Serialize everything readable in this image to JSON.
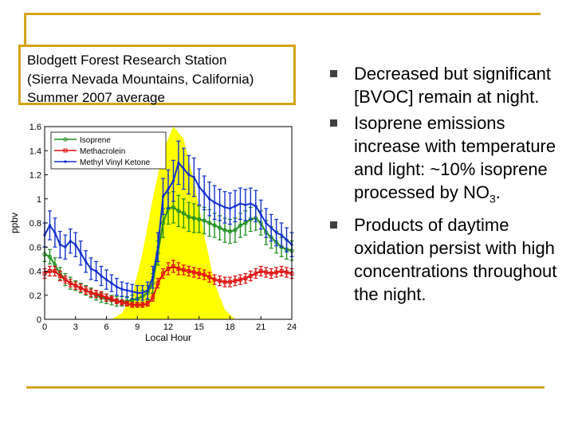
{
  "title_box": {
    "lines": [
      "Blodgett Forest Research Station",
      "(Sierra Nevada Mountains, California)",
      "Summer 2007 average"
    ]
  },
  "bullets": [
    {
      "text": "Decreased but significant [BVOC] remain at night."
    },
    {
      "text": "Isoprene emissions increase with temperature and light: ~10% isoprene processed by NO",
      "sub": "3",
      "suffix": "."
    },
    {
      "text": "Products of daytime oxidation persist with high concentrations throughout the night."
    }
  ],
  "colors": {
    "accent_rule": "#d4a514",
    "light_fill": "#ffff00",
    "isoprene": "#1f8f1f",
    "methacrolein": "#e01010",
    "mvk": "#1030d0"
  },
  "chart_data": {
    "type": "line",
    "xlabel": "Local Hour",
    "ylabel": "ppbv",
    "xlim": [
      0,
      24
    ],
    "ylim": [
      0,
      1.6
    ],
    "xticks": [
      0,
      3,
      6,
      9,
      12,
      15,
      18,
      21,
      24
    ],
    "yticks": [
      0,
      0.2,
      0.4,
      0.6,
      0.8,
      1,
      1.2,
      1.4,
      1.6
    ],
    "ytick_labels": [
      "0",
      "0.2",
      "0.4",
      "0.6",
      "0.8",
      "1",
      "1.2",
      "1.4",
      "1.6"
    ],
    "legend_position": "top-left",
    "background_fill": {
      "x": [
        6.5,
        7.5,
        8.5,
        9.5,
        10.5,
        11.5,
        12.5,
        13.5,
        14.5,
        15.5,
        16.5,
        17.5,
        18.5
      ],
      "y": [
        0,
        0.05,
        0.2,
        0.55,
        1.0,
        1.4,
        1.6,
        1.5,
        1.15,
        0.7,
        0.3,
        0.08,
        0
      ]
    },
    "x": [
      0,
      0.5,
      1,
      1.5,
      2,
      2.5,
      3,
      3.5,
      4,
      4.5,
      5,
      5.5,
      6,
      6.5,
      7,
      7.5,
      8,
      8.5,
      9,
      9.5,
      10,
      10.5,
      11,
      11.5,
      12,
      12.5,
      13,
      13.5,
      14,
      14.5,
      15,
      15.5,
      16,
      16.5,
      17,
      17.5,
      18,
      18.5,
      19,
      19.5,
      20,
      20.5,
      21,
      21.5,
      22,
      22.5,
      23,
      23.5,
      24
    ],
    "series": [
      {
        "name": "Isoprene",
        "color_key": "isoprene",
        "marker": "circle",
        "values": [
          0.54,
          0.52,
          0.45,
          0.38,
          0.33,
          0.3,
          0.28,
          0.26,
          0.24,
          0.22,
          0.2,
          0.18,
          0.17,
          0.16,
          0.15,
          0.15,
          0.15,
          0.16,
          0.17,
          0.19,
          0.22,
          0.3,
          0.55,
          0.8,
          0.92,
          0.93,
          0.9,
          0.88,
          0.85,
          0.84,
          0.83,
          0.82,
          0.8,
          0.78,
          0.76,
          0.74,
          0.73,
          0.74,
          0.78,
          0.8,
          0.83,
          0.84,
          0.8,
          0.72,
          0.68,
          0.64,
          0.6,
          0.58,
          0.57
        ],
        "err": [
          0.06,
          0.06,
          0.06,
          0.05,
          0.05,
          0.05,
          0.04,
          0.04,
          0.04,
          0.04,
          0.04,
          0.04,
          0.04,
          0.04,
          0.04,
          0.04,
          0.04,
          0.04,
          0.05,
          0.05,
          0.06,
          0.08,
          0.1,
          0.12,
          0.13,
          0.13,
          0.13,
          0.12,
          0.12,
          0.12,
          0.11,
          0.11,
          0.11,
          0.1,
          0.1,
          0.1,
          0.1,
          0.1,
          0.1,
          0.1,
          0.1,
          0.1,
          0.1,
          0.1,
          0.09,
          0.09,
          0.08,
          0.08,
          0.08
        ]
      },
      {
        "name": "Methacrolein",
        "color_key": "methacrolein",
        "marker": "square",
        "values": [
          0.38,
          0.4,
          0.4,
          0.36,
          0.33,
          0.3,
          0.28,
          0.26,
          0.24,
          0.22,
          0.21,
          0.2,
          0.18,
          0.17,
          0.15,
          0.14,
          0.13,
          0.12,
          0.12,
          0.12,
          0.13,
          0.18,
          0.3,
          0.38,
          0.42,
          0.44,
          0.42,
          0.41,
          0.4,
          0.39,
          0.38,
          0.37,
          0.35,
          0.33,
          0.32,
          0.31,
          0.31,
          0.32,
          0.33,
          0.34,
          0.36,
          0.38,
          0.4,
          0.39,
          0.38,
          0.39,
          0.4,
          0.39,
          0.38
        ],
        "err": [
          0.04,
          0.04,
          0.04,
          0.04,
          0.03,
          0.03,
          0.03,
          0.03,
          0.03,
          0.03,
          0.03,
          0.03,
          0.03,
          0.02,
          0.02,
          0.02,
          0.02,
          0.02,
          0.02,
          0.02,
          0.02,
          0.03,
          0.04,
          0.04,
          0.05,
          0.05,
          0.05,
          0.04,
          0.04,
          0.04,
          0.04,
          0.04,
          0.04,
          0.04,
          0.04,
          0.04,
          0.04,
          0.04,
          0.04,
          0.04,
          0.04,
          0.04,
          0.04,
          0.04,
          0.04,
          0.04,
          0.04,
          0.04,
          0.04
        ]
      },
      {
        "name": "Methyl Vinyl Ketone",
        "color_key": "mvk",
        "marker": "star",
        "values": [
          0.7,
          0.78,
          0.72,
          0.62,
          0.6,
          0.65,
          0.62,
          0.55,
          0.48,
          0.42,
          0.4,
          0.36,
          0.33,
          0.3,
          0.27,
          0.25,
          0.24,
          0.23,
          0.22,
          0.22,
          0.24,
          0.35,
          0.6,
          1.02,
          1.08,
          1.15,
          1.3,
          1.25,
          1.2,
          1.18,
          1.1,
          1.05,
          1.0,
          0.97,
          0.95,
          0.93,
          0.92,
          0.94,
          0.96,
          0.95,
          0.96,
          0.94,
          0.87,
          0.8,
          0.76,
          0.72,
          0.7,
          0.66,
          0.62
        ],
        "err": [
          0.1,
          0.12,
          0.12,
          0.11,
          0.1,
          0.1,
          0.1,
          0.1,
          0.09,
          0.09,
          0.08,
          0.08,
          0.08,
          0.07,
          0.07,
          0.06,
          0.06,
          0.06,
          0.06,
          0.06,
          0.07,
          0.09,
          0.12,
          0.15,
          0.16,
          0.17,
          0.18,
          0.17,
          0.16,
          0.16,
          0.15,
          0.14,
          0.14,
          0.14,
          0.13,
          0.13,
          0.13,
          0.13,
          0.13,
          0.13,
          0.13,
          0.13,
          0.12,
          0.12,
          0.11,
          0.11,
          0.1,
          0.1,
          0.1
        ]
      }
    ]
  }
}
